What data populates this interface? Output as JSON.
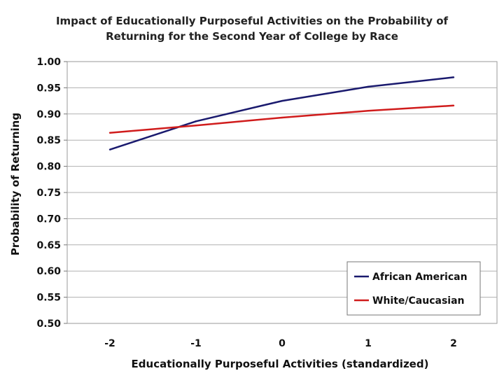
{
  "chart_data": {
    "type": "line",
    "title_line1": "Impact of Educationally Purposeful Activities on the Probability of",
    "title_line2": "Returning for the Second Year of College by Race",
    "xlabel": "Educationally Purposeful Activities (standardized)",
    "ylabel": "Probability of Returning",
    "categories": [
      "-2",
      "-1",
      "0",
      "1",
      "2"
    ],
    "y_ticks": [
      "0.50",
      "0.55",
      "0.60",
      "0.65",
      "0.70",
      "0.75",
      "0.80",
      "0.85",
      "0.90",
      "0.95",
      "1.00"
    ],
    "ylim": [
      0.5,
      1.0
    ],
    "grid": "horizontal",
    "legend_position": "bottom-right",
    "series": [
      {
        "name": "African American",
        "color": "#1a1a6e",
        "values": [
          0.832,
          0.886,
          0.925,
          0.952,
          0.97
        ]
      },
      {
        "name": "White/Caucasian",
        "color": "#d01c1c",
        "values": [
          0.864,
          0.878,
          0.893,
          0.906,
          0.916
        ]
      }
    ]
  }
}
